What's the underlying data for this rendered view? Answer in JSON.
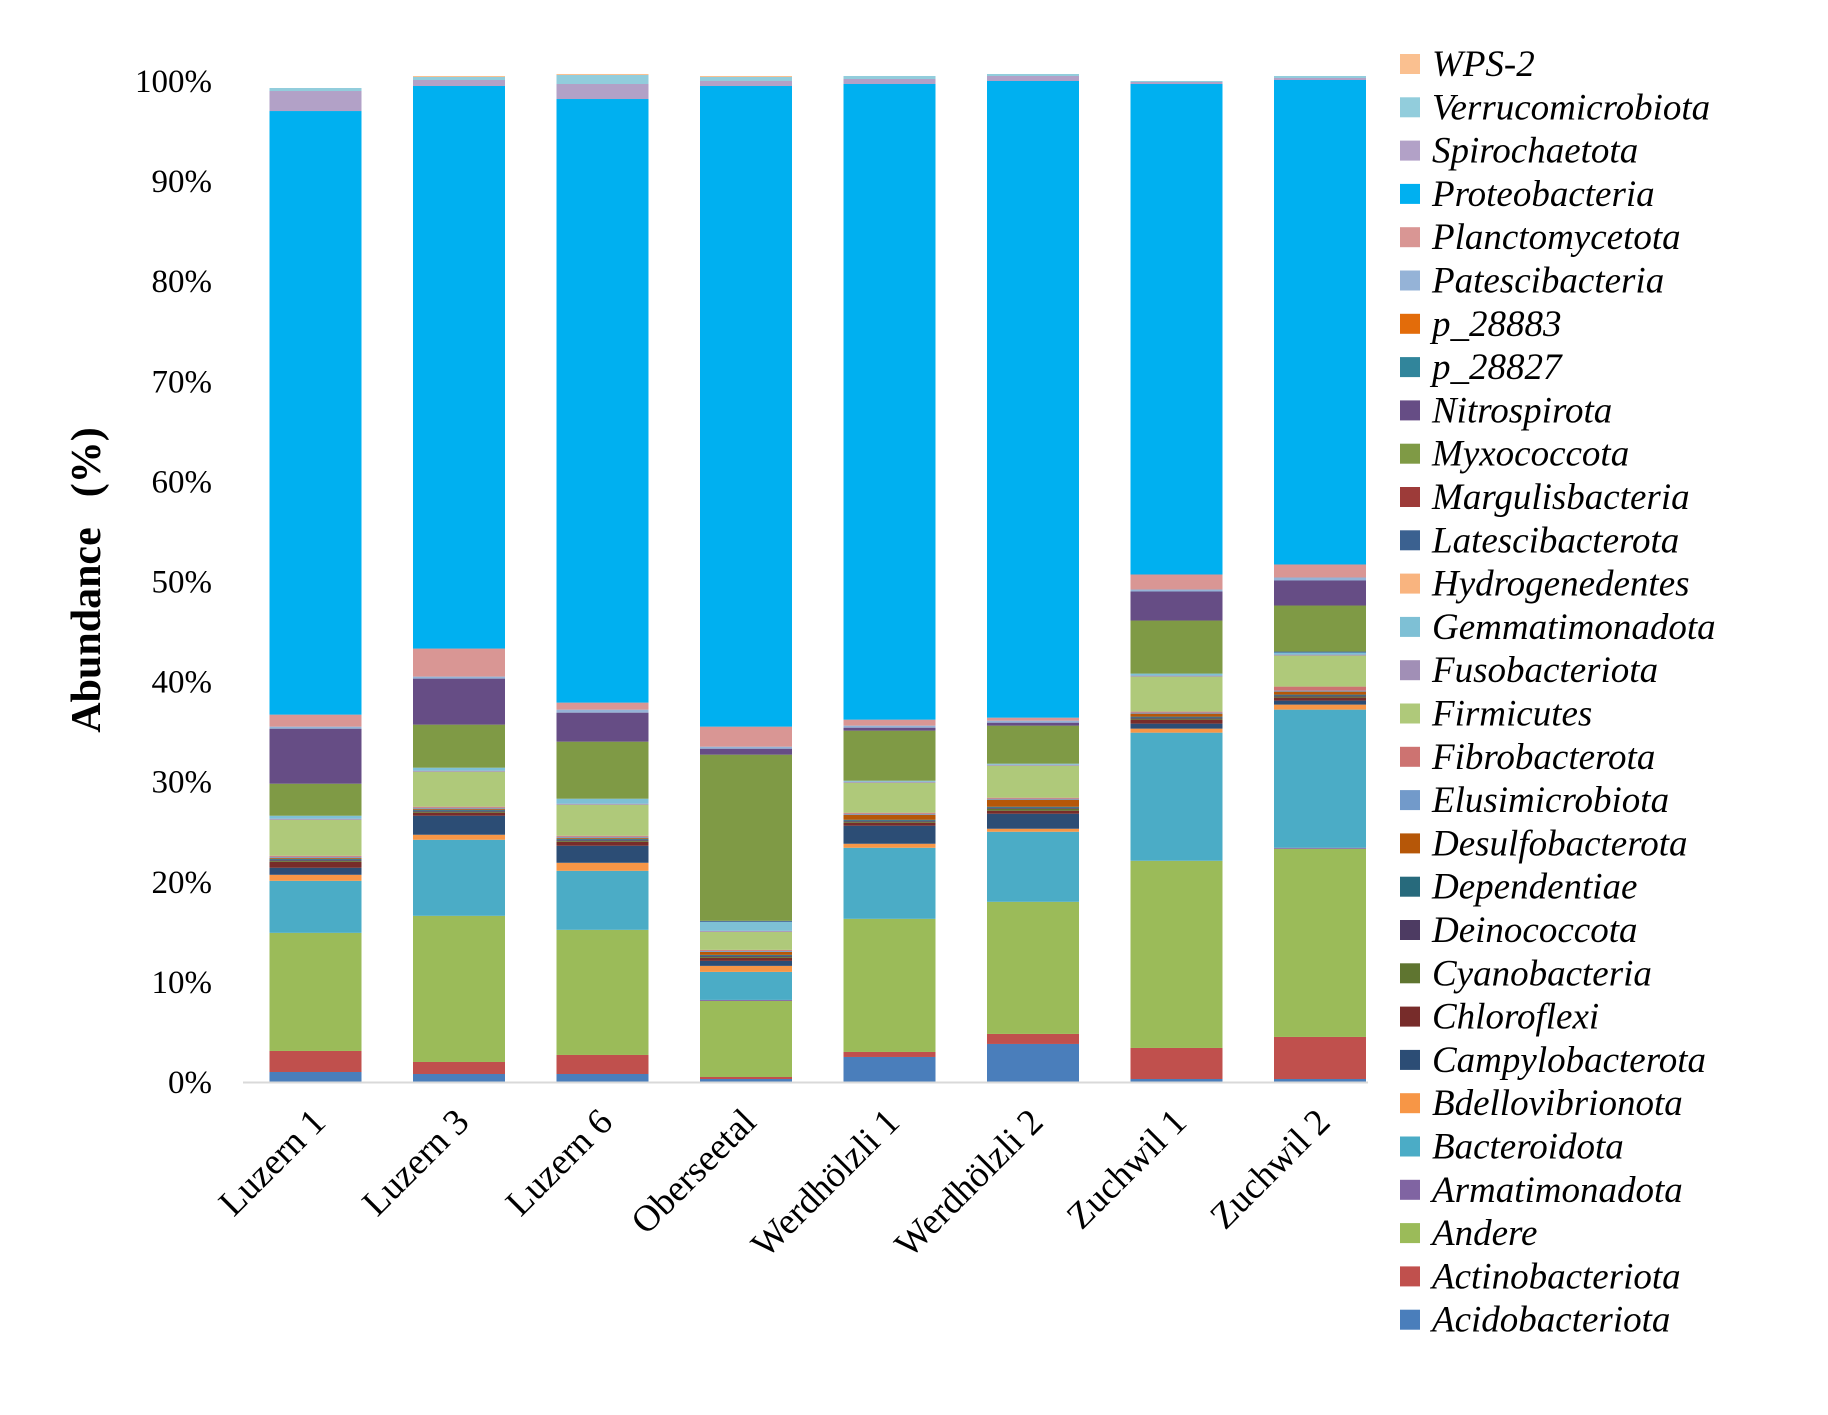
{
  "chart_data": {
    "type": "bar",
    "stacked": true,
    "title": "",
    "xlabel": "",
    "ylabel": "Abundance",
    "ylabel_unit": "(%)",
    "ylim": [
      0,
      100
    ],
    "yticks": [
      "0%",
      "10%",
      "20%",
      "30%",
      "40%",
      "50%",
      "60%",
      "70%",
      "80%",
      "90%",
      "100%"
    ],
    "legend_position": "right",
    "grid": false,
    "categories": [
      "Luzern 1",
      "Luzern 3",
      "Luzern 6",
      "Oberseetal",
      "Werdhölzli 1",
      "Werdhölzli 2",
      "Zuchwil 1",
      "Zuchwil 2"
    ],
    "series": [
      {
        "name": "Acidobacteriota",
        "color": "#4a7ebb",
        "values": [
          1.0,
          0.8,
          0.8,
          0.3,
          2.5,
          3.8,
          0.3,
          0.3
        ]
      },
      {
        "name": "Actinobacteriota",
        "color": "#c0504d",
        "values": [
          2.1,
          1.2,
          1.9,
          0.2,
          0.5,
          1.0,
          3.1,
          4.2
        ]
      },
      {
        "name": "Andere",
        "color": "#9bbb59",
        "values": [
          11.8,
          14.6,
          12.5,
          7.6,
          13.3,
          13.2,
          18.7,
          18.8
        ]
      },
      {
        "name": "Armatimonadota",
        "color": "#8064a2",
        "values": [
          0,
          0,
          0,
          0.1,
          0,
          0,
          0,
          0.1
        ]
      },
      {
        "name": "Bacteroidota",
        "color": "#4bacc6",
        "values": [
          5.2,
          7.6,
          5.9,
          2.8,
          7.1,
          7.0,
          12.8,
          13.8
        ]
      },
      {
        "name": "Bdellovibrionota",
        "color": "#f79646",
        "values": [
          0.6,
          0.5,
          0.8,
          0.6,
          0.4,
          0.3,
          0.4,
          0.5
        ]
      },
      {
        "name": "Campylobacterota",
        "color": "#2c4d75",
        "values": [
          0.7,
          1.9,
          1.7,
          0.5,
          1.8,
          1.5,
          0.5,
          0.4
        ]
      },
      {
        "name": "Chloroflexi",
        "color": "#772c2a",
        "values": [
          0.6,
          0.3,
          0.4,
          0.3,
          0.3,
          0.3,
          0.4,
          0.3
        ]
      },
      {
        "name": "Cyanobacteria",
        "color": "#5f7530",
        "values": [
          0.1,
          0.1,
          0.1,
          0.1,
          0.1,
          0.2,
          0.1,
          0.1
        ]
      },
      {
        "name": "Deinococcota",
        "color": "#4d3b62",
        "values": [
          0.1,
          0.1,
          0.1,
          0.1,
          0.1,
          0.1,
          0.1,
          0.1
        ]
      },
      {
        "name": "Dependentiae",
        "color": "#276a7c",
        "values": [
          0.1,
          0.1,
          0.1,
          0.1,
          0.1,
          0.1,
          0.1,
          0.1
        ]
      },
      {
        "name": "Desulfobacterota",
        "color": "#b65708",
        "values": [
          0.1,
          0.1,
          0.1,
          0.3,
          0.5,
          0.7,
          0.3,
          0.3
        ]
      },
      {
        "name": "Elusimicrobiota",
        "color": "#729aca",
        "values": [
          0.1,
          0.1,
          0.1,
          0.1,
          0.1,
          0.1,
          0.1,
          0.1
        ]
      },
      {
        "name": "Fibrobacterota",
        "color": "#cd7371",
        "values": [
          0.1,
          0.1,
          0.1,
          0.1,
          0.1,
          0.1,
          0.1,
          0.4
        ]
      },
      {
        "name": "Firmicutes",
        "color": "#afc97a",
        "values": [
          3.6,
          3.5,
          3.1,
          1.8,
          3.0,
          3.2,
          3.5,
          3.1
        ]
      },
      {
        "name": "Fusobacteriota",
        "color": "#a18fb6",
        "values": [
          0.1,
          0.1,
          0.1,
          0.1,
          0.1,
          0.1,
          0.1,
          0.1
        ]
      },
      {
        "name": "Gemmatimonadota",
        "color": "#7ec0d5",
        "values": [
          0.3,
          0.3,
          0.5,
          0.9,
          0.1,
          0.1,
          0.2,
          0.2
        ]
      },
      {
        "name": "Hydrogenedentes",
        "color": "#f9b47f",
        "values": [
          0,
          0,
          0,
          0,
          0,
          0,
          0,
          0
        ]
      },
      {
        "name": "Latescibacterota",
        "color": "#3b6190",
        "values": [
          0,
          0,
          0,
          0.1,
          0,
          0,
          0,
          0.1
        ]
      },
      {
        "name": "Margulisbacteria",
        "color": "#9d3b39",
        "values": [
          0,
          0,
          0,
          0,
          0,
          0,
          0,
          0
        ]
      },
      {
        "name": "Myxococcota",
        "color": "#7f9a45",
        "values": [
          3.2,
          4.3,
          5.7,
          16.6,
          5.0,
          3.8,
          5.3,
          4.6
        ]
      },
      {
        "name": "Nitrospirota",
        "color": "#664d85",
        "values": [
          5.5,
          4.6,
          2.9,
          0.6,
          0.3,
          0.3,
          2.9,
          2.5
        ]
      },
      {
        "name": "p_28827",
        "color": "#31859b",
        "values": [
          0,
          0,
          0,
          0,
          0,
          0,
          0,
          0
        ]
      },
      {
        "name": "p_28883",
        "color": "#e36c0a",
        "values": [
          0,
          0,
          0,
          0,
          0,
          0,
          0,
          0
        ]
      },
      {
        "name": "Patescibacteria",
        "color": "#95b3d7",
        "values": [
          0.2,
          0.2,
          0.3,
          0.2,
          0.2,
          0.2,
          0.2,
          0.3
        ]
      },
      {
        "name": "Planctomycetota",
        "color": "#d99694",
        "values": [
          1.2,
          2.8,
          0.7,
          2.0,
          0.6,
          0.3,
          1.5,
          1.3
        ]
      },
      {
        "name": "Proteobacteria",
        "color": "#00b0f0",
        "values": [
          60.3,
          56.2,
          60.3,
          64.0,
          63.5,
          63.6,
          49.0,
          48.4
        ]
      },
      {
        "name": "Spirochaetota",
        "color": "#b2a1c7",
        "values": [
          2.0,
          0.6,
          1.5,
          0.5,
          0.5,
          0.5,
          0.2,
          0.2
        ]
      },
      {
        "name": "Verrucomicrobiota",
        "color": "#92cddc",
        "values": [
          0.3,
          0.3,
          0.9,
          0.4,
          0.3,
          0.2,
          0.1,
          0.2
        ]
      },
      {
        "name": "WPS-2",
        "color": "#fac090",
        "values": [
          0,
          0.1,
          0.1,
          0.1,
          0,
          0,
          0,
          0
        ]
      }
    ]
  }
}
